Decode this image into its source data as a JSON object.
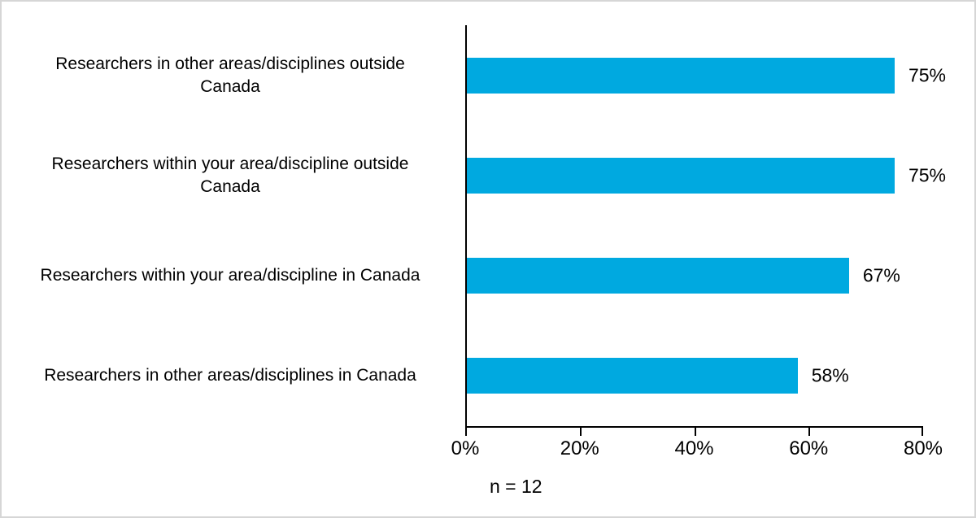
{
  "chart_data": {
    "type": "bar",
    "orientation": "horizontal",
    "title": "",
    "categories": [
      "Researchers in other areas/disciplines outside\nCanada",
      "Researchers within your area/discipline outside\nCanada",
      "Researchers within your area/discipline in Canada",
      "Researchers in other areas/disciplines in Canada"
    ],
    "values": [
      75,
      75,
      67,
      58
    ],
    "value_labels": [
      "75%",
      "75%",
      "67%",
      "58%"
    ],
    "x_ticks": [
      "0%",
      "20%",
      "40%",
      "60%",
      "80%"
    ],
    "xlim": [
      0,
      80
    ],
    "xlabel": "",
    "ylabel": "",
    "grid": "off",
    "legend": "none",
    "bar_color": "#00A9E0",
    "axis_color": "#000000",
    "footnote": "n = 12"
  }
}
